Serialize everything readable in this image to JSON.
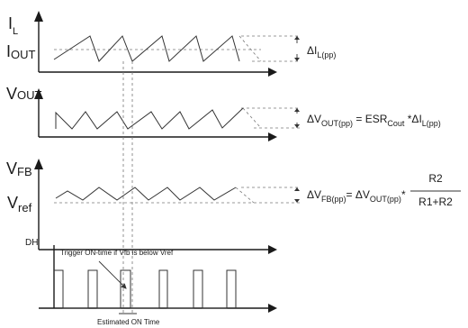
{
  "labels": {
    "il": "I",
    "il_sub": "L",
    "iout": "I",
    "iout_sub": "OUT",
    "vout": "V",
    "vout_sub": "OUT",
    "vfb": "V",
    "vfb_sub": "FB",
    "vref": "V",
    "vref_sub": "ref",
    "dh": "DH"
  },
  "equations": {
    "eq1": {
      "main": "ΔI",
      "sub": "L(pp)"
    },
    "eq2": {
      "a": "ΔV",
      "a_sub": "OUT(pp)",
      "b": " = ESR",
      "b_sub": "Cout",
      "c": " *ΔI",
      "c_sub": "L(pp)"
    },
    "eq3": {
      "a": "ΔV",
      "a_sub": "FB(pp)",
      "b": "= ΔV",
      "b_sub": "OUT(pp)",
      "c": "*",
      "num": "R2",
      "den": "R1+R2"
    }
  },
  "annotations": {
    "trigger": "Trigger ON-time if Vfb is below Vref",
    "estimated": "Estimated ON Time"
  }
}
